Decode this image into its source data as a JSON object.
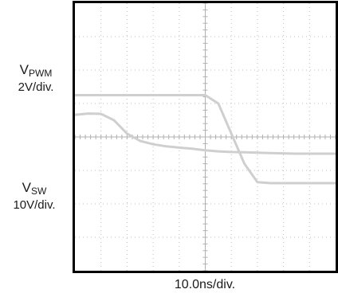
{
  "chart_data": {
    "type": "line",
    "xlabel": "10.0ns/div.",
    "grid": true,
    "x_divisions": 10,
    "y_divisions": 8,
    "x": [
      -5,
      -4.5,
      -4,
      -3.5,
      -3,
      -2.5,
      -2,
      -1.5,
      -1,
      -0.5,
      0,
      0.5,
      1,
      1.5,
      2,
      2.5,
      3,
      3.5,
      4,
      4.5,
      5
    ],
    "series": [
      {
        "name_main": "V",
        "name_sub": "PWM",
        "scale": "2V/div.",
        "y_div": [
          0.66,
          0.7,
          0.69,
          0.5,
          0.1,
          -0.12,
          -0.22,
          -0.28,
          -0.32,
          -0.35,
          -0.4,
          -0.43,
          -0.45,
          -0.46,
          -0.47,
          -0.48,
          -0.49,
          -0.5,
          -0.5,
          -0.5,
          -0.5
        ]
      },
      {
        "name_main": "V",
        "name_sub": "SW",
        "scale": "10V/div.",
        "y_div": [
          1.25,
          1.25,
          1.25,
          1.25,
          1.25,
          1.25,
          1.25,
          1.25,
          1.25,
          1.25,
          1.25,
          1.0,
          0.1,
          -0.8,
          -1.35,
          -1.38,
          -1.38,
          -1.38,
          -1.38,
          -1.38,
          -1.38
        ]
      }
    ]
  }
}
